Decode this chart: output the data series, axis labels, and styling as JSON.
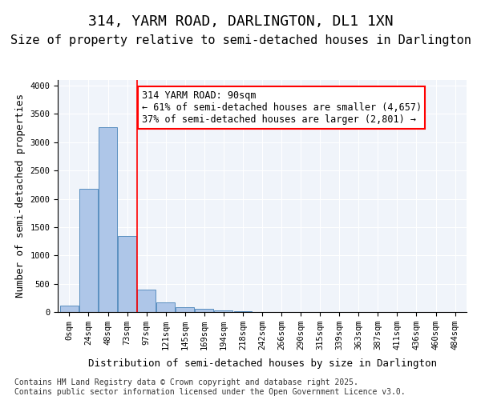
{
  "title": "314, YARM ROAD, DARLINGTON, DL1 1XN",
  "subtitle": "Size of property relative to semi-detached houses in Darlington",
  "xlabel": "Distribution of semi-detached houses by size in Darlington",
  "ylabel": "Number of semi-detached properties",
  "bin_labels": [
    "0sqm",
    "24sqm",
    "48sqm",
    "73sqm",
    "97sqm",
    "121sqm",
    "145sqm",
    "169sqm",
    "194sqm",
    "218sqm",
    "242sqm",
    "266sqm",
    "290sqm",
    "315sqm",
    "339sqm",
    "363sqm",
    "387sqm",
    "411sqm",
    "436sqm",
    "460sqm",
    "484sqm"
  ],
  "bar_values": [
    110,
    2180,
    3270,
    1340,
    400,
    165,
    90,
    50,
    30,
    20,
    0,
    0,
    0,
    0,
    0,
    0,
    0,
    0,
    0,
    0,
    0
  ],
  "bar_color": "#aec6e8",
  "bar_edgecolor": "#5a8fc0",
  "property_size": 90,
  "annotation_text": "314 YARM ROAD: 90sqm\n← 61% of semi-detached houses are smaller (4,657)\n37% of semi-detached houses are larger (2,801) →",
  "ylim": [
    0,
    4100
  ],
  "yticks": [
    0,
    500,
    1000,
    1500,
    2000,
    2500,
    3000,
    3500,
    4000
  ],
  "background_color": "#f0f4fa",
  "grid_color": "#ffffff",
  "footer_text": "Contains HM Land Registry data © Crown copyright and database right 2025.\nContains public sector information licensed under the Open Government Licence v3.0.",
  "title_fontsize": 13,
  "subtitle_fontsize": 11,
  "axis_label_fontsize": 9,
  "tick_fontsize": 7.5,
  "annotation_fontsize": 8.5,
  "footer_fontsize": 7
}
